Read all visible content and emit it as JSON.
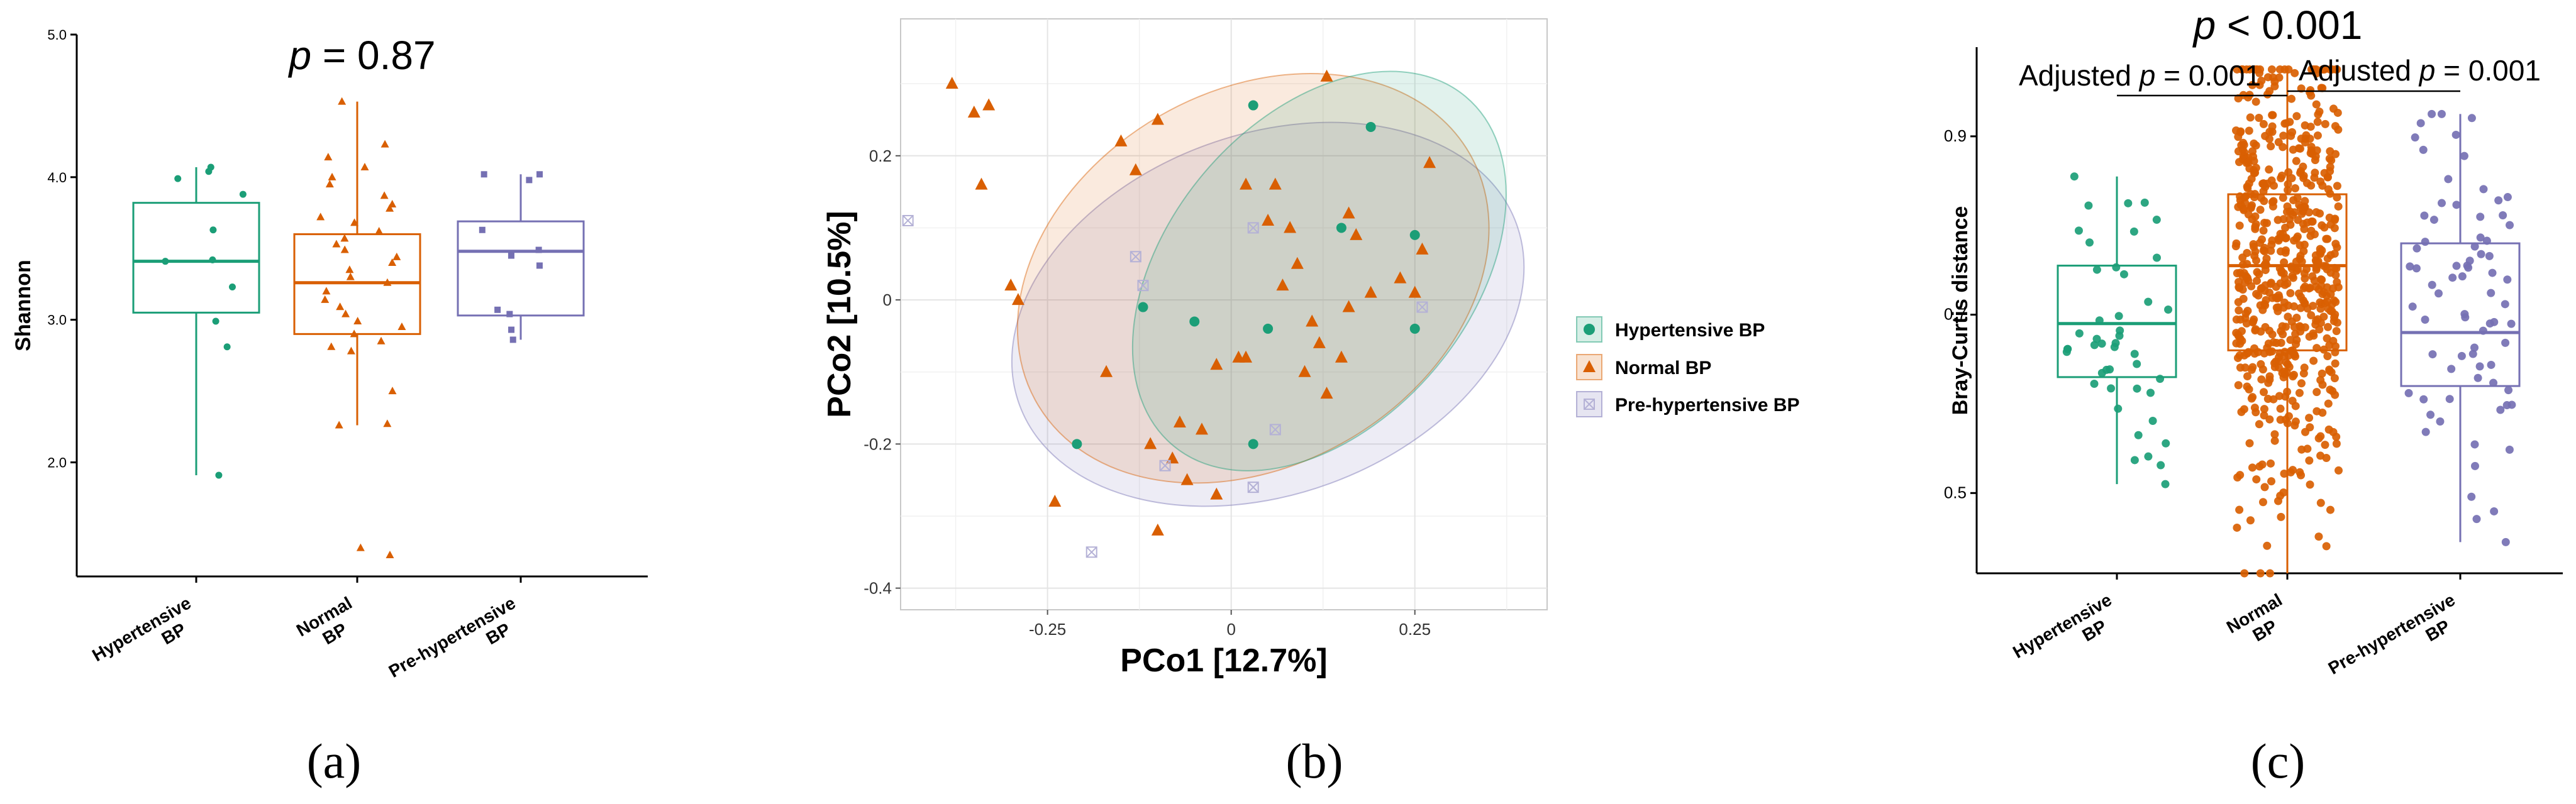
{
  "colors": {
    "hypertensive": "#1b9e77",
    "normal": "#d95f02",
    "prehypertensive": "#7570b3"
  },
  "panels": {
    "a": "(a)",
    "b": "(b)",
    "c": "(c)"
  },
  "chart_data": [
    {
      "type": "box",
      "id": "a",
      "title": "p = 0.87",
      "title_italic": "p",
      "title_rest": " = 0.87",
      "ylabel": "Shannon",
      "xlabel": "",
      "ylim": [
        1.2,
        5.0
      ],
      "yticks": [
        2.0,
        3.0,
        4.0,
        5.0
      ],
      "ytick_labels": [
        "2.0",
        "3.0",
        "4.0",
        "5.0"
      ],
      "categories": [
        "Hypertensive BP",
        "Normal BP",
        "Pre-hypertensive BP"
      ],
      "category_lines": [
        [
          "Hypertensive",
          "BP"
        ],
        [
          "Normal",
          "BP"
        ],
        [
          "Pre-hypertensive",
          "BP"
        ]
      ],
      "boxes": [
        {
          "q1": 3.05,
          "median": 3.41,
          "q3": 3.82,
          "whisker_low": 1.91,
          "whisker_high": 4.07
        },
        {
          "q1": 2.9,
          "median": 3.26,
          "q3": 3.6,
          "whisker_low": 2.26,
          "whisker_high": 4.53
        },
        {
          "q1": 3.03,
          "median": 3.48,
          "q3": 3.69,
          "whisker_low": 2.86,
          "whisker_high": 4.02
        }
      ],
      "points": [
        [
          4.07,
          3.99,
          4.04,
          3.88,
          3.63,
          3.42,
          3.41,
          3.23,
          2.99,
          2.81,
          1.91
        ],
        [
          4.53,
          4.23,
          4.14,
          4.07,
          4.0,
          3.95,
          3.87,
          3.81,
          3.78,
          3.72,
          3.68,
          3.62,
          3.57,
          3.53,
          3.49,
          3.44,
          3.4,
          3.35,
          3.3,
          3.26,
          3.2,
          3.14,
          3.09,
          3.04,
          2.99,
          2.95,
          2.9,
          2.85,
          2.81,
          2.78,
          2.5,
          2.27,
          2.26,
          1.4,
          1.35
        ],
        [
          4.02,
          4.02,
          3.98,
          3.63,
          3.49,
          3.45,
          3.38,
          3.07,
          3.04,
          2.93,
          2.86
        ]
      ]
    },
    {
      "type": "scatter",
      "id": "b",
      "xlabel": "PCo1 [12.7%]",
      "ylabel": "PCo2 [10.5%]",
      "xlim": [
        -0.45,
        0.43
      ],
      "ylim": [
        -0.43,
        0.39
      ],
      "xticks": [
        -0.25,
        0,
        0.25
      ],
      "xtick_labels": [
        "-0.25",
        "0",
        "0.25"
      ],
      "yticks": [
        -0.4,
        -0.2,
        0,
        0.2
      ],
      "ytick_labels": [
        "-0.4",
        "-0.2",
        "0",
        "0.2"
      ],
      "legend": {
        "position": "right",
        "entries": [
          "Hypertensive BP",
          "Normal BP",
          "Pre-hypertensive BP"
        ]
      },
      "ellipses": [
        {
          "cx": 0.12,
          "cy": 0.04,
          "rx": 0.31,
          "ry": 0.21,
          "angle_deg": -50
        },
        {
          "cx": 0.03,
          "cy": 0.03,
          "rx": 0.34,
          "ry": 0.26,
          "angle_deg": -30
        },
        {
          "cx": 0.05,
          "cy": -0.02,
          "rx": 0.36,
          "ry": 0.25,
          "angle_deg": -20
        }
      ],
      "series": [
        {
          "name": "Hypertensive BP",
          "points": [
            [
              0.03,
              0.27
            ],
            [
              0.19,
              0.24
            ],
            [
              0.15,
              0.1
            ],
            [
              0.25,
              0.09
            ],
            [
              -0.12,
              -0.01
            ],
            [
              -0.05,
              -0.03
            ],
            [
              0.05,
              -0.04
            ],
            [
              0.25,
              -0.04
            ],
            [
              -0.21,
              -0.2
            ],
            [
              0.03,
              -0.2
            ]
          ]
        },
        {
          "name": "Normal BP",
          "points": [
            [
              -0.38,
              0.3
            ],
            [
              -0.35,
              0.26
            ],
            [
              -0.33,
              0.27
            ],
            [
              -0.34,
              0.16
            ],
            [
              -0.3,
              0.02
            ],
            [
              -0.29,
              0.0
            ],
            [
              -0.15,
              0.22
            ],
            [
              -0.1,
              0.25
            ],
            [
              -0.13,
              0.18
            ],
            [
              0.13,
              0.31
            ],
            [
              -0.17,
              -0.1
            ],
            [
              -0.08,
              -0.22
            ],
            [
              -0.11,
              -0.2
            ],
            [
              -0.07,
              -0.17
            ],
            [
              -0.06,
              -0.25
            ],
            [
              -0.04,
              -0.18
            ],
            [
              -0.02,
              -0.09
            ],
            [
              0.01,
              -0.08
            ],
            [
              -0.02,
              -0.27
            ],
            [
              0.02,
              0.16
            ],
            [
              0.06,
              0.16
            ],
            [
              0.05,
              0.11
            ],
            [
              0.08,
              0.1
            ],
            [
              0.09,
              0.05
            ],
            [
              0.11,
              -0.03
            ],
            [
              0.12,
              -0.06
            ],
            [
              0.1,
              -0.1
            ],
            [
              0.13,
              -0.13
            ],
            [
              0.15,
              -0.08
            ],
            [
              0.16,
              -0.01
            ],
            [
              0.19,
              0.01
            ],
            [
              0.23,
              0.03
            ],
            [
              0.25,
              0.01
            ],
            [
              0.26,
              0.07
            ],
            [
              0.27,
              0.19
            ],
            [
              0.16,
              0.12
            ],
            [
              0.17,
              0.09
            ],
            [
              -0.1,
              -0.32
            ],
            [
              -0.24,
              -0.28
            ],
            [
              0.02,
              -0.08
            ],
            [
              0.07,
              0.02
            ]
          ]
        },
        {
          "name": "Pre-hypertensive BP",
          "points": [
            [
              -0.44,
              0.11
            ],
            [
              -0.13,
              0.06
            ],
            [
              -0.12,
              0.02
            ],
            [
              0.03,
              0.1
            ],
            [
              0.26,
              -0.01
            ],
            [
              -0.09,
              -0.23
            ],
            [
              0.06,
              -0.18
            ],
            [
              0.03,
              -0.26
            ],
            [
              -0.19,
              -0.35
            ]
          ]
        }
      ]
    },
    {
      "type": "box",
      "id": "c",
      "title": "p < 0.001",
      "title_italic": "p",
      "title_rest": " < 0.001",
      "annotations": [
        {
          "prefix": "Adjusted ",
          "italic": "p",
          "suffix": " = 0.001",
          "between": [
            0,
            1
          ]
        },
        {
          "prefix": "Adjusted ",
          "italic": "p",
          "suffix": " = 0.001",
          "between": [
            1,
            2
          ]
        }
      ],
      "ylabel": "Bray-Curtis distance",
      "xlabel": "",
      "ylim": [
        0.41,
        1.0
      ],
      "yticks": [
        0.5,
        0.7,
        0.9
      ],
      "ytick_labels": [
        "0.5",
        "0.7",
        "0.9"
      ],
      "categories": [
        "Hypertensive BP",
        "Normal BP",
        "Pre-hypertensive BP"
      ],
      "category_lines": [
        [
          "Hypertensive",
          "BP"
        ],
        [
          "Normal",
          "BP"
        ],
        [
          "Pre-hypertensive",
          "BP"
        ]
      ],
      "boxes": [
        {
          "q1": 0.63,
          "median": 0.69,
          "q3": 0.755,
          "whisker_low": 0.51,
          "whisker_high": 0.855
        },
        {
          "q1": 0.66,
          "median": 0.755,
          "q3": 0.835,
          "whisker_low": 0.41,
          "whisker_high": 0.975
        },
        {
          "q1": 0.62,
          "median": 0.68,
          "q3": 0.78,
          "whisker_low": 0.445,
          "whisker_high": 0.925
        }
      ],
      "point_counts": [
        45,
        630,
        75
      ]
    }
  ]
}
